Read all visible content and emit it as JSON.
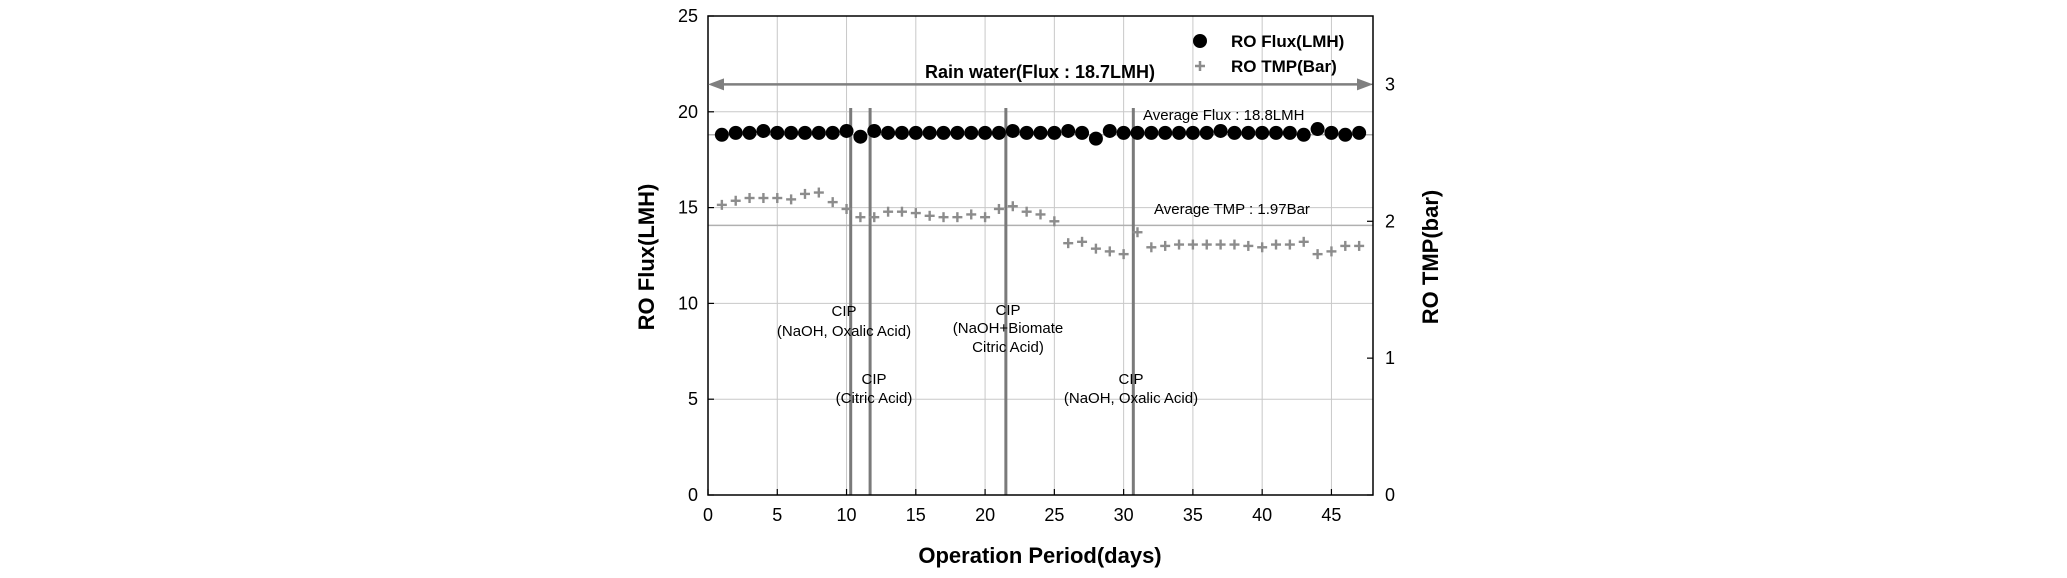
{
  "chart_data": {
    "type": "scatter",
    "xlabel": "Operation Period(days)",
    "ylabel": "RO Flux(LMH)",
    "y2label": "RO TMP(bar)",
    "xlim": [
      0,
      48
    ],
    "ylim": [
      0,
      25
    ],
    "y2lim": [
      0,
      3.5
    ],
    "xticks": [
      0,
      5,
      10,
      15,
      20,
      25,
      30,
      35,
      40,
      45
    ],
    "yticks": [
      0,
      5,
      10,
      15,
      20,
      25
    ],
    "y2ticks": [
      0,
      1,
      2,
      3
    ],
    "grid": true,
    "legend_position": "top-right",
    "series": [
      {
        "name": "RO Flux(LMH)",
        "axis": "left",
        "marker": "circle",
        "color": "#000000",
        "x": [
          1,
          2,
          3,
          4,
          5,
          6,
          7,
          8,
          9,
          10,
          11,
          12,
          13,
          14,
          15,
          16,
          17,
          18,
          19,
          20,
          21,
          22,
          23,
          24,
          25,
          26,
          27,
          28,
          29,
          30,
          31,
          32,
          33,
          34,
          35,
          36,
          37,
          38,
          39,
          40,
          41,
          42,
          43,
          44,
          45,
          46,
          47
        ],
        "y": [
          18.8,
          18.9,
          18.9,
          19.0,
          18.9,
          18.9,
          18.9,
          18.9,
          18.9,
          19.0,
          18.7,
          19.0,
          18.9,
          18.9,
          18.9,
          18.9,
          18.9,
          18.9,
          18.9,
          18.9,
          18.9,
          19.0,
          18.9,
          18.9,
          18.9,
          19.0,
          18.9,
          18.6,
          19.0,
          18.9,
          18.9,
          18.9,
          18.9,
          18.9,
          18.9,
          18.9,
          19.0,
          18.9,
          18.9,
          18.9,
          18.9,
          18.9,
          18.8,
          19.1,
          18.9,
          18.8,
          18.9
        ]
      },
      {
        "name": "RO TMP(Bar)",
        "axis": "right",
        "marker": "plus",
        "color": "#8c8c8c",
        "x": [
          1,
          2,
          3,
          4,
          5,
          6,
          7,
          8,
          9,
          10,
          11,
          12,
          13,
          14,
          15,
          16,
          17,
          18,
          19,
          20,
          21,
          22,
          23,
          24,
          25,
          26,
          27,
          28,
          29,
          30,
          31,
          32,
          33,
          34,
          35,
          36,
          37,
          38,
          39,
          40,
          41,
          42,
          43,
          44,
          45,
          46,
          47
        ],
        "y": [
          2.12,
          2.15,
          2.17,
          2.17,
          2.17,
          2.16,
          2.2,
          2.21,
          2.14,
          2.09,
          2.03,
          2.03,
          2.07,
          2.07,
          2.06,
          2.04,
          2.03,
          2.03,
          2.05,
          2.03,
          2.09,
          2.11,
          2.07,
          2.05,
          2.0,
          1.84,
          1.85,
          1.8,
          1.78,
          1.76,
          1.92,
          1.81,
          1.82,
          1.83,
          1.83,
          1.83,
          1.83,
          1.83,
          1.82,
          1.81,
          1.83,
          1.83,
          1.85,
          1.76,
          1.78,
          1.82,
          1.82
        ]
      }
    ],
    "cip_lines_x": [
      10.3,
      11.7,
      21.5,
      30.7
    ],
    "rain_water_span": [
      0,
      48
    ],
    "horizontal_lines": [
      {
        "axis": "left",
        "value": 18.8
      },
      {
        "axis": "right",
        "value": 1.97
      }
    ],
    "text": {
      "rain_water": "Rain water(Flux : 18.7LMH)",
      "avg_flux": "Average Flux : 18.8LMH",
      "avg_tmp": "Average TMP : 1.97Bar",
      "cip1_l1": "CIP",
      "cip1_l2": "(NaOH, Oxalic Acid)",
      "cip2_l1": "CIP",
      "cip2_l2": "(Citric Acid)",
      "cip3_l1": "CIP",
      "cip3_l2": "(NaOH+Biomate",
      "cip3_l3": "Citric Acid)",
      "cip4_l1": "CIP",
      "cip4_l2": "(NaOH, Oxalic Acid)"
    }
  }
}
